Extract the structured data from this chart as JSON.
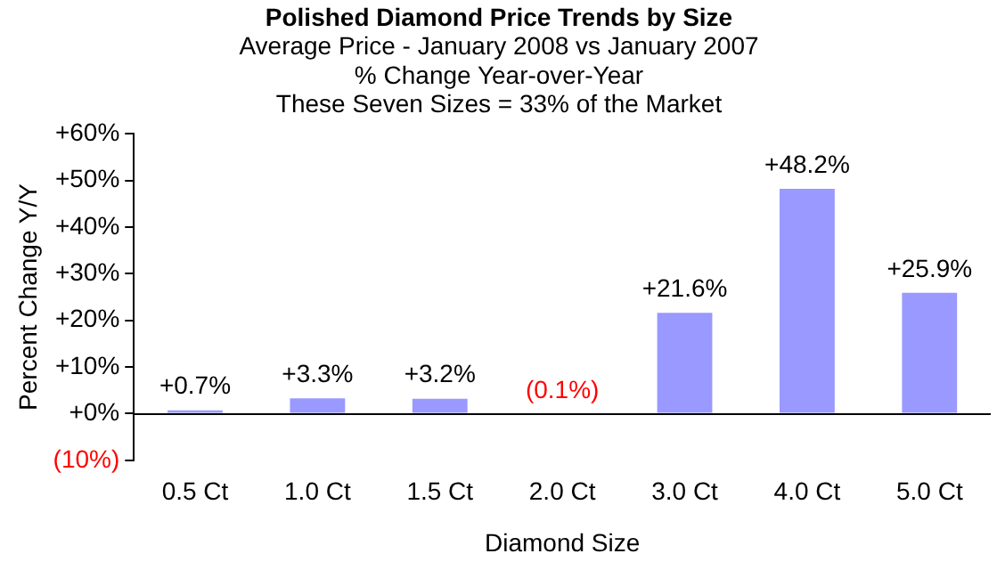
{
  "chart_data": {
    "type": "bar",
    "title": "Polished Diamond Price Trends by Size",
    "subtitle": "Average Price - January 2008 vs January 2007\n% Change Year-over-Year\nThese Seven Sizes = 33% of the Market",
    "xlabel": "Diamond Size",
    "ylabel": "Percent Change Y/Y",
    "categories": [
      "0.5 Ct",
      "1.0 Ct",
      "1.5 Ct",
      "2.0 Ct",
      "3.0 Ct",
      "4.0 Ct",
      "5.0 Ct"
    ],
    "values": [
      0.7,
      3.3,
      3.2,
      -0.1,
      21.6,
      48.2,
      25.9
    ],
    "value_labels": [
      "+0.7%",
      "+3.3%",
      "+3.2%",
      "(0.1%)",
      "+21.6%",
      "+48.2%",
      "+25.9%"
    ],
    "color": "#9999ff",
    "ylim": [
      -10,
      60
    ],
    "yticks": [
      {
        "value": -10,
        "label": "(10%)"
      },
      {
        "value": 0,
        "label": "+0%"
      },
      {
        "value": 10,
        "label": "+10%"
      },
      {
        "value": 20,
        "label": "+20%"
      },
      {
        "value": 30,
        "label": "+30%"
      },
      {
        "value": 40,
        "label": "+40%"
      },
      {
        "value": 50,
        "label": "+50%"
      },
      {
        "value": 60,
        "label": "+60%"
      }
    ],
    "grid": false,
    "legend": false
  }
}
